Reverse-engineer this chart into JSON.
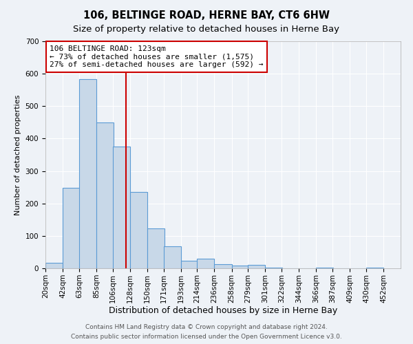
{
  "title": "106, BELTINGE ROAD, HERNE BAY, CT6 6HW",
  "subtitle": "Size of property relative to detached houses in Herne Bay",
  "xlabel": "Distribution of detached houses by size in Herne Bay",
  "ylabel": "Number of detached properties",
  "bar_left_edges": [
    20,
    42,
    63,
    85,
    106,
    128,
    150,
    171,
    193,
    214,
    236,
    258,
    279,
    301,
    322,
    344,
    366,
    387,
    409,
    430
  ],
  "bar_heights": [
    18,
    248,
    583,
    450,
    375,
    236,
    122,
    67,
    24,
    30,
    13,
    8,
    10,
    2,
    0,
    0,
    2,
    0,
    0,
    2
  ],
  "bin_width": 22,
  "tick_labels": [
    "20sqm",
    "42sqm",
    "63sqm",
    "85sqm",
    "106sqm",
    "128sqm",
    "150sqm",
    "171sqm",
    "193sqm",
    "214sqm",
    "236sqm",
    "258sqm",
    "279sqm",
    "301sqm",
    "322sqm",
    "344sqm",
    "366sqm",
    "387sqm",
    "409sqm",
    "430sqm",
    "452sqm"
  ],
  "tick_positions": [
    20,
    42,
    63,
    85,
    106,
    128,
    150,
    171,
    193,
    214,
    236,
    258,
    279,
    301,
    322,
    344,
    366,
    387,
    409,
    430,
    452
  ],
  "bar_color": "#c8d8e8",
  "bar_edge_color": "#5b9bd5",
  "vline_x": 123,
  "vline_color": "#cc0000",
  "ylim": [
    0,
    700
  ],
  "yticks": [
    0,
    100,
    200,
    300,
    400,
    500,
    600,
    700
  ],
  "annotation_line1": "106 BELTINGE ROAD: 123sqm",
  "annotation_line2": "← 73% of detached houses are smaller (1,575)",
  "annotation_line3": "27% of semi-detached houses are larger (592) →",
  "annotation_box_facecolor": "#ffffff",
  "annotation_box_edgecolor": "#cc0000",
  "footer_line1": "Contains HM Land Registry data © Crown copyright and database right 2024.",
  "footer_line2": "Contains public sector information licensed under the Open Government Licence v3.0.",
  "background_color": "#eef2f7",
  "grid_color": "#ffffff",
  "title_fontsize": 10.5,
  "subtitle_fontsize": 9.5,
  "xlabel_fontsize": 9,
  "ylabel_fontsize": 8,
  "tick_fontsize": 7.5,
  "annotation_fontsize": 8,
  "footer_fontsize": 6.5
}
